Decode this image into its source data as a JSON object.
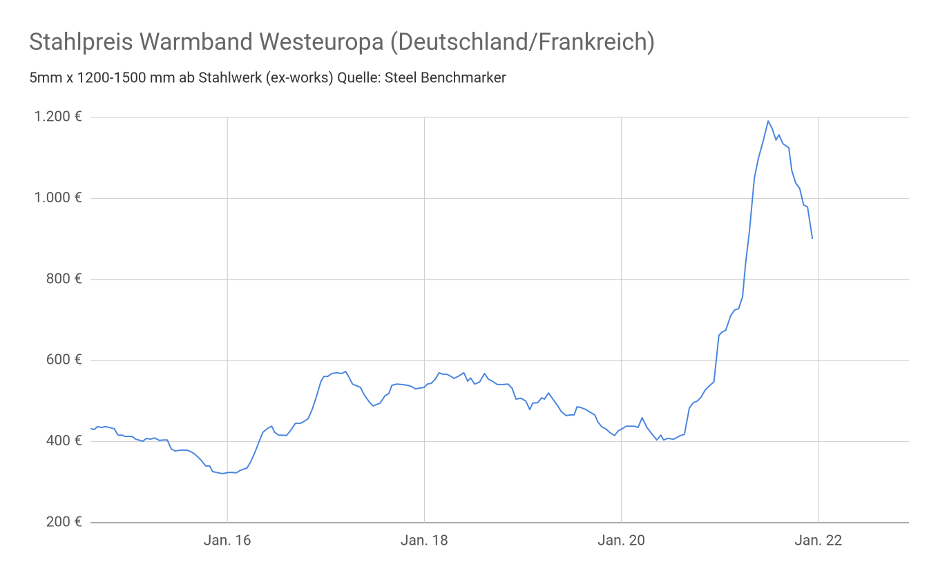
{
  "chart_data": {
    "type": "line",
    "title": "Stahlpreis Warmband Westeuropa (Deutschland/Frankreich)",
    "subtitle": "5mm x 1200-1500 mm ab Stahlwerk (ex-works) Quelle: Steel Benchmarker",
    "color": "#4a86e0",
    "grid": true,
    "xlim": [
      14.61,
      22.92
    ],
    "xticks": [
      {
        "value": 16,
        "label": "Jan. 16"
      },
      {
        "value": 18,
        "label": "Jan. 18"
      },
      {
        "value": 20,
        "label": "Jan. 20"
      },
      {
        "value": 22,
        "label": "Jan. 22"
      }
    ],
    "ylim": [
      200,
      1200
    ],
    "yticks": [
      {
        "value": 200,
        "label": "200 €"
      },
      {
        "value": 400,
        "label": "400 €"
      },
      {
        "value": 600,
        "label": "600 €"
      },
      {
        "value": 800,
        "label": "800 €"
      },
      {
        "value": 1000,
        "label": "1.000 €"
      },
      {
        "value": 1200,
        "label": "1.200 €"
      }
    ],
    "x": [
      14.61,
      14.65,
      14.68,
      14.72,
      14.76,
      14.8,
      14.85,
      14.89,
      14.93,
      14.96,
      15.03,
      15.07,
      15.14,
      15.18,
      15.22,
      15.26,
      15.31,
      15.35,
      15.39,
      15.43,
      15.47,
      15.53,
      15.59,
      15.63,
      15.67,
      15.73,
      15.78,
      15.82,
      15.85,
      15.91,
      15.95,
      16.01,
      16.05,
      16.09,
      16.13,
      16.2,
      16.24,
      16.28,
      16.32,
      16.36,
      16.41,
      16.45,
      16.48,
      16.52,
      16.55,
      16.6,
      16.64,
      16.69,
      16.74,
      16.78,
      16.82,
      16.86,
      16.9,
      16.95,
      16.98,
      17.02,
      17.06,
      17.11,
      17.16,
      17.2,
      17.23,
      17.27,
      17.32,
      17.35,
      17.39,
      17.44,
      17.48,
      17.51,
      17.55,
      17.6,
      17.64,
      17.67,
      17.72,
      17.77,
      17.83,
      17.87,
      17.91,
      17.95,
      18.0,
      18.03,
      18.07,
      18.11,
      18.15,
      18.19,
      18.23,
      18.27,
      18.3,
      18.35,
      18.4,
      18.44,
      18.47,
      18.51,
      18.56,
      18.61,
      18.65,
      18.69,
      18.74,
      18.8,
      18.85,
      18.89,
      18.93,
      18.98,
      19.03,
      19.07,
      19.1,
      19.15,
      19.19,
      19.22,
      19.26,
      19.31,
      19.36,
      19.39,
      19.44,
      19.48,
      19.52,
      19.55,
      19.59,
      19.64,
      19.68,
      19.73,
      19.76,
      19.8,
      19.85,
      19.88,
      19.93,
      19.97,
      20.01,
      20.05,
      20.09,
      20.13,
      20.17,
      20.21,
      20.26,
      20.29,
      20.33,
      20.36,
      20.4,
      20.43,
      20.47,
      20.53,
      20.57,
      20.6,
      20.64,
      20.69,
      20.73,
      20.77,
      20.81,
      20.85,
      20.9,
      20.94,
      20.99,
      21.02,
      21.06,
      21.11,
      21.15,
      21.19,
      21.23,
      21.26,
      21.3,
      21.35,
      21.39,
      21.44,
      21.49,
      21.53,
      21.57,
      21.6,
      21.64,
      21.7,
      21.73,
      21.77,
      21.81,
      21.85,
      21.89,
      21.94
    ],
    "values": [
      432,
      430,
      437,
      435,
      437,
      435,
      432,
      416,
      416,
      413,
      413,
      406,
      401,
      408,
      406,
      409,
      403,
      404,
      404,
      382,
      377,
      379,
      379,
      375,
      369,
      355,
      340,
      340,
      326,
      323,
      321,
      324,
      324,
      323,
      329,
      335,
      352,
      374,
      399,
      423,
      433,
      438,
      423,
      416,
      416,
      415,
      427,
      445,
      445,
      450,
      457,
      479,
      508,
      549,
      561,
      561,
      568,
      570,
      568,
      573,
      561,
      542,
      537,
      534,
      515,
      498,
      488,
      491,
      495,
      513,
      519,
      539,
      542,
      541,
      539,
      536,
      530,
      532,
      534,
      542,
      544,
      554,
      570,
      566,
      566,
      561,
      556,
      562,
      570,
      549,
      557,
      542,
      547,
      568,
      554,
      549,
      541,
      541,
      542,
      532,
      505,
      507,
      500,
      479,
      495,
      496,
      508,
      505,
      520,
      503,
      486,
      474,
      464,
      466,
      466,
      486,
      484,
      479,
      473,
      466,
      449,
      437,
      430,
      423,
      415,
      427,
      432,
      438,
      438,
      438,
      435,
      459,
      435,
      425,
      413,
      404,
      416,
      404,
      408,
      406,
      411,
      415,
      418,
      483,
      496,
      500,
      510,
      527,
      539,
      548,
      662,
      670,
      675,
      711,
      725,
      728,
      757,
      837,
      919,
      1050,
      1098,
      1142,
      1191,
      1173,
      1144,
      1157,
      1135,
      1125,
      1069,
      1038,
      1025,
      984,
      979,
      900
    ]
  }
}
